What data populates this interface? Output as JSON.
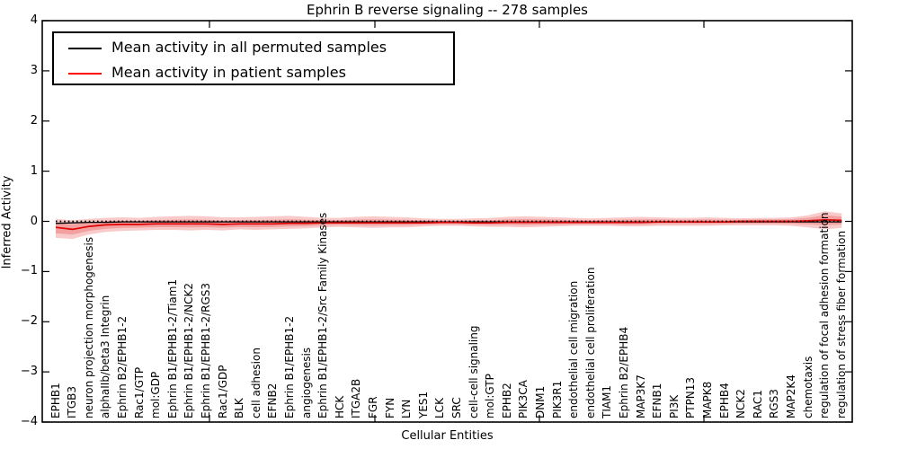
{
  "chart_data": {
    "type": "line",
    "title": "Ephrin B reverse signaling -- 278 samples",
    "xlabel": "Cellular Entities",
    "ylabel": "Inferred Activity",
    "ylim": [
      -4,
      4
    ],
    "grid": false,
    "ytick_labels": [
      "4",
      "3",
      "2",
      "1",
      "0",
      "−1",
      "−2",
      "−3",
      "−4"
    ],
    "ytick_values": [
      4,
      3,
      2,
      1,
      0,
      -1,
      -2,
      -3,
      -4
    ],
    "legend": {
      "position": "upper left",
      "entries": [
        {
          "label": "Mean activity in all permuted samples",
          "color": "#000000"
        },
        {
          "label": "Mean activity in patient samples",
          "color": "#ff0000"
        }
      ]
    },
    "categories": [
      "EPHB1",
      "ITGB3",
      "neuron projection morphogenesis",
      "alphaIIb/beta3 Integrin",
      "Ephrin B2/EPHB1-2",
      "Rac1/GTP",
      "mol:GDP",
      "Ephrin B1/EPHB1-2/Tiam1",
      "Ephrin B1/EPHB1-2/NCK2",
      "Ephrin B1/EPHB1-2/RGS3",
      "Rac1/GDP",
      "BLK",
      "cell adhesion",
      "EFNB2",
      "Ephrin B1/EPHB1-2",
      "angiogenesis",
      "Ephrin B1/EPHB1-2/Src Family Kinases",
      "HCK",
      "ITGA2B",
      "FGR",
      "FYN",
      "LYN",
      "YES1",
      "LCK",
      "SRC",
      "cell-cell signaling",
      "mol:GTP",
      "EPHB2",
      "PIK3CA",
      "DNM1",
      "PIK3R1",
      "endothelial cell migration",
      "endothelial cell proliferation",
      "TIAM1",
      "Ephrin B2/EPHB4",
      "MAP3K7",
      "EFNB1",
      "PI3K",
      "PTPN13",
      "MAPK8",
      "EPHB4",
      "NCK2",
      "RAC1",
      "RGS3",
      "MAP2K4",
      "chemotaxis",
      "regulation of focal adhesion formation",
      "regulation of stress fiber formation"
    ],
    "series": [
      {
        "name": "Mean activity in all permuted samples",
        "color": "#000000",
        "style": "solid",
        "values": [
          -0.04,
          -0.03,
          -0.02,
          -0.02,
          -0.01,
          -0.01,
          -0.01,
          -0.01,
          -0.01,
          -0.01,
          -0.01,
          -0.01,
          -0.01,
          -0.01,
          -0.01,
          -0.01,
          -0.01,
          -0.01,
          -0.01,
          -0.01,
          -0.01,
          -0.01,
          -0.01,
          -0.01,
          -0.01,
          -0.01,
          -0.01,
          -0.01,
          -0.01,
          -0.01,
          -0.01,
          -0.01,
          -0.01,
          -0.01,
          -0.01,
          -0.01,
          -0.01,
          -0.01,
          -0.01,
          -0.01,
          -0.01,
          -0.01,
          -0.01,
          -0.01,
          -0.01,
          -0.01,
          -0.01,
          -0.01
        ]
      },
      {
        "name": "Mean activity in patient samples",
        "color": "#e00000",
        "style": "solid",
        "values": [
          -0.12,
          -0.16,
          -0.1,
          -0.07,
          -0.06,
          -0.06,
          -0.05,
          -0.05,
          -0.05,
          -0.05,
          -0.06,
          -0.05,
          -0.05,
          -0.05,
          -0.04,
          -0.04,
          -0.03,
          -0.03,
          -0.03,
          -0.03,
          -0.03,
          -0.03,
          -0.03,
          -0.02,
          -0.02,
          -0.03,
          -0.03,
          -0.02,
          -0.02,
          -0.02,
          -0.02,
          -0.02,
          -0.02,
          -0.02,
          -0.02,
          -0.02,
          -0.01,
          -0.01,
          -0.01,
          -0.01,
          -0.01,
          0.0,
          0.0,
          0.0,
          0.0,
          0.01,
          0.03,
          0.02
        ]
      },
      {
        "name": "zero reference",
        "color": "#000000",
        "style": "dotted",
        "values": [
          0,
          0,
          0,
          0,
          0,
          0,
          0,
          0,
          0,
          0,
          0,
          0,
          0,
          0,
          0,
          0,
          0,
          0,
          0,
          0,
          0,
          0,
          0,
          0,
          0,
          0,
          0,
          0,
          0,
          0,
          0,
          0,
          0,
          0,
          0,
          0,
          0,
          0,
          0,
          0,
          0,
          0,
          0,
          0,
          0,
          0,
          0,
          0
        ]
      }
    ],
    "bands": [
      {
        "name": "permuted samples spread",
        "color": "#9c9c9c",
        "hi": [
          0.1,
          0.08,
          0.07,
          0.06,
          0.06,
          0.06,
          0.06,
          0.06,
          0.06,
          0.06,
          0.06,
          0.06,
          0.06,
          0.06,
          0.06,
          0.06,
          0.05,
          0.05,
          0.05,
          0.06,
          0.06,
          0.06,
          0.05,
          0.05,
          0.05,
          0.05,
          0.06,
          0.06,
          0.06,
          0.06,
          0.06,
          0.05,
          0.05,
          0.05,
          0.06,
          0.06,
          0.05,
          0.05,
          0.06,
          0.06,
          0.05,
          0.05,
          0.05,
          0.06,
          0.06,
          0.07,
          0.1,
          0.1
        ],
        "lo": [
          -0.15,
          -0.13,
          -0.11,
          -0.09,
          -0.08,
          -0.08,
          -0.08,
          -0.08,
          -0.08,
          -0.08,
          -0.08,
          -0.08,
          -0.08,
          -0.08,
          -0.08,
          -0.08,
          -0.07,
          -0.07,
          -0.08,
          -0.09,
          -0.09,
          -0.08,
          -0.08,
          -0.1,
          -0.12,
          -0.13,
          -0.12,
          -0.1,
          -0.09,
          -0.09,
          -0.09,
          -0.08,
          -0.08,
          -0.08,
          -0.09,
          -0.08,
          -0.08,
          -0.09,
          -0.1,
          -0.09,
          -0.08,
          -0.08,
          -0.08,
          -0.09,
          -0.1,
          -0.11,
          -0.14,
          -0.13
        ]
      },
      {
        "name": "patient samples spread",
        "color": "#e85050",
        "hi": [
          0.05,
          0.02,
          0.05,
          0.07,
          0.08,
          0.07,
          0.09,
          0.1,
          0.11,
          0.1,
          0.08,
          0.08,
          0.09,
          0.1,
          0.11,
          0.09,
          0.07,
          0.07,
          0.09,
          0.1,
          0.09,
          0.08,
          0.06,
          0.05,
          0.05,
          0.06,
          0.07,
          0.09,
          0.1,
          0.09,
          0.08,
          0.07,
          0.06,
          0.07,
          0.08,
          0.09,
          0.08,
          0.07,
          0.07,
          0.08,
          0.07,
          0.06,
          0.07,
          0.07,
          0.08,
          0.12,
          0.2,
          0.16
        ],
        "lo": [
          -0.33,
          -0.35,
          -0.26,
          -0.21,
          -0.19,
          -0.18,
          -0.17,
          -0.17,
          -0.18,
          -0.17,
          -0.18,
          -0.16,
          -0.17,
          -0.16,
          -0.15,
          -0.14,
          -0.12,
          -0.11,
          -0.12,
          -0.13,
          -0.12,
          -0.12,
          -0.1,
          -0.09,
          -0.09,
          -0.1,
          -0.11,
          -0.11,
          -0.12,
          -0.11,
          -0.1,
          -0.09,
          -0.09,
          -0.09,
          -0.1,
          -0.1,
          -0.09,
          -0.09,
          -0.09,
          -0.09,
          -0.08,
          -0.08,
          -0.08,
          -0.08,
          -0.09,
          -0.12,
          -0.16,
          -0.13
        ]
      }
    ]
  }
}
